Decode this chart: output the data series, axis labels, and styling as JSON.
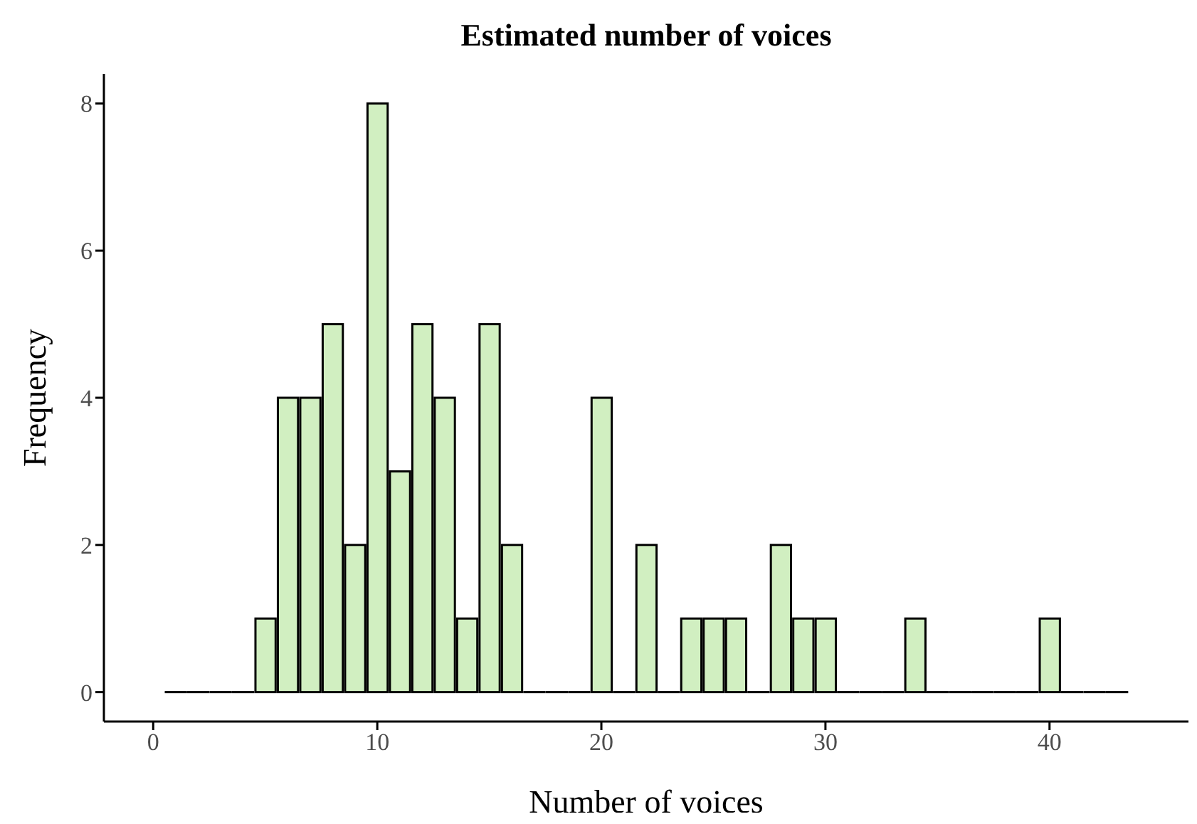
{
  "chart_data": {
    "type": "histogram",
    "title": "Estimated number of voices",
    "xlabel": "Number of voices",
    "ylabel": "Frequency",
    "bins": [
      0.5,
      1.5,
      2.5,
      3.5,
      4.5,
      5.5,
      6.5,
      7.5,
      8.5,
      9.5,
      10.5,
      11.5,
      12.5,
      13.5,
      14.5,
      15.5,
      16.5,
      17.5,
      18.5,
      19.5,
      20.5,
      21.5,
      22.5,
      23.5,
      24.5,
      25.5,
      26.5,
      27.5,
      28.5,
      29.5,
      30.5,
      31.5,
      32.5,
      33.5,
      34.5,
      35.5,
      36.5,
      37.5,
      38.5,
      39.5,
      40.5,
      41.5,
      42.5,
      43.5
    ],
    "values": [
      0,
      0,
      0,
      0,
      1,
      4,
      4,
      5,
      2,
      8,
      3,
      5,
      4,
      1,
      5,
      2,
      0,
      0,
      0,
      4,
      0,
      2,
      0,
      1,
      1,
      1,
      0,
      2,
      1,
      1,
      0,
      0,
      0,
      1,
      0,
      0,
      0,
      0,
      0,
      1,
      0,
      0,
      0
    ],
    "color": "#d1efc1",
    "xlim": [
      -2.2,
      46.2
    ],
    "xticks": [
      0,
      10,
      20,
      30,
      40
    ],
    "ylim": [
      -0.4,
      8.4
    ],
    "yticks": [
      0,
      2,
      4,
      6,
      8
    ],
    "grid": false,
    "legend": false
  }
}
